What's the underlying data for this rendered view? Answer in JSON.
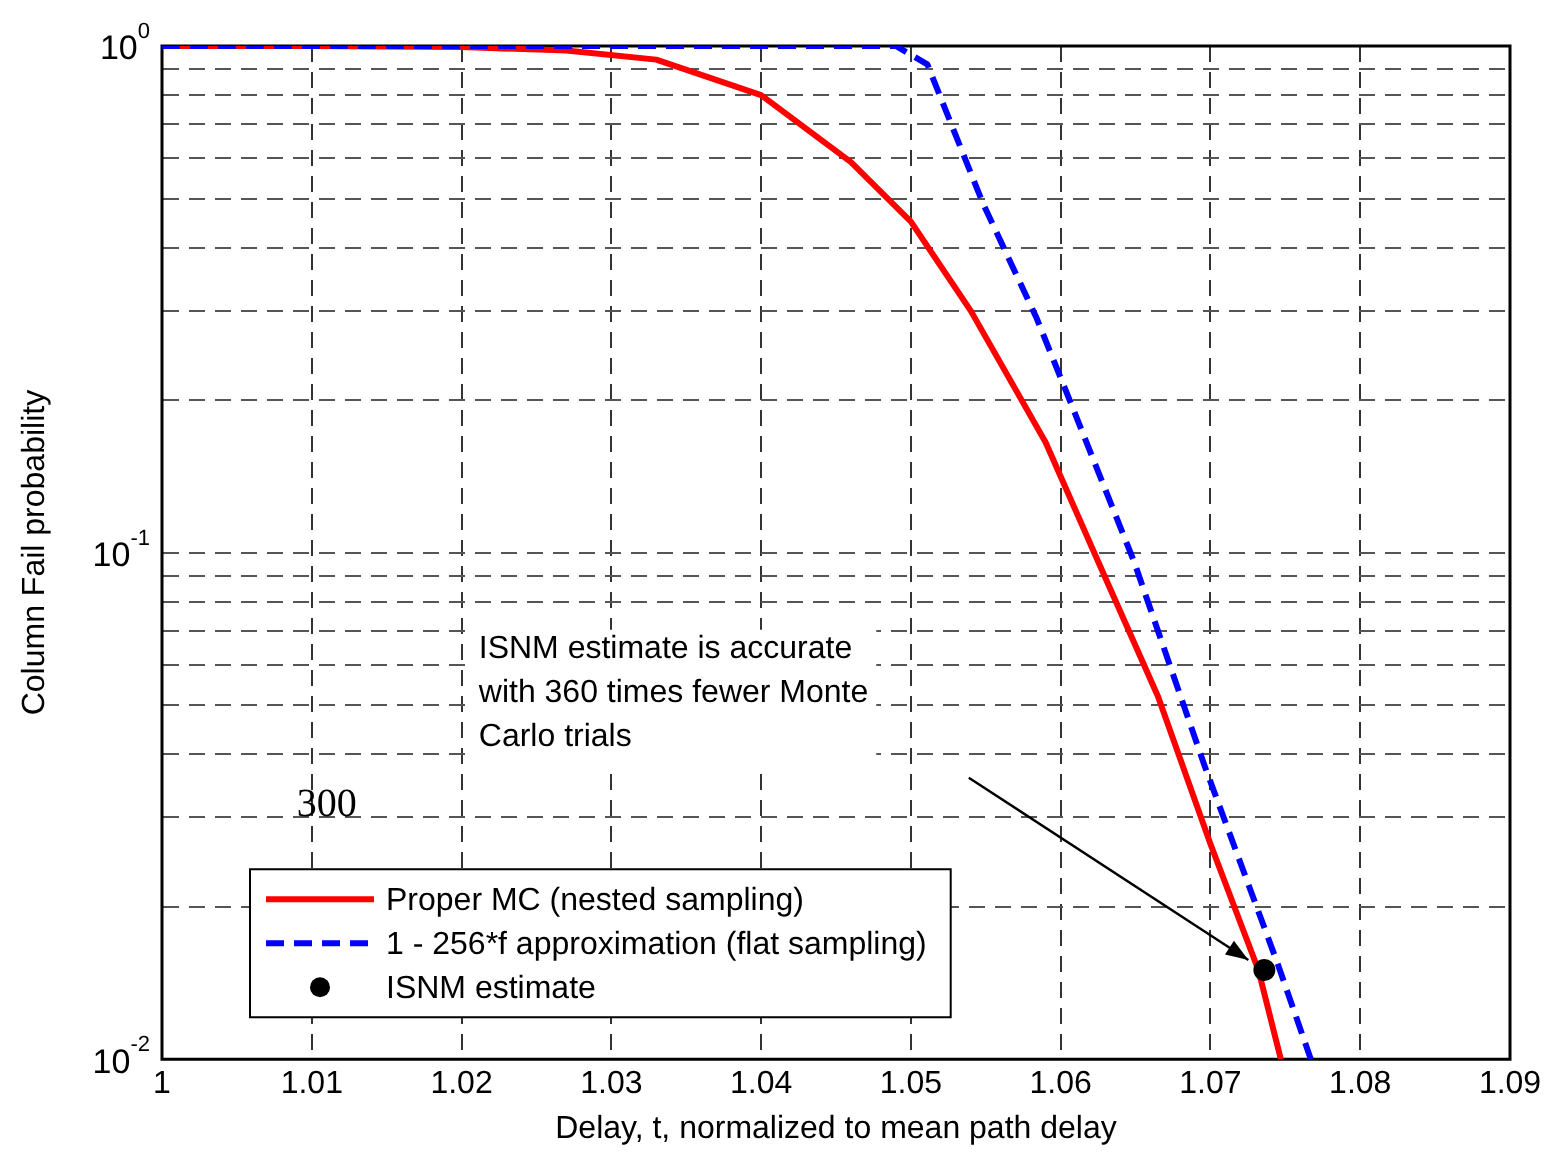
{
  "chart_data": {
    "type": "line",
    "xlabel": "Delay, t, normalized to mean path delay",
    "ylabel": "Column Fail probability",
    "log": "y",
    "grid": true,
    "legend": "bottom left",
    "xlim": [
      1,
      1.09
    ],
    "xticks": [
      1,
      1.01,
      1.02,
      1.03,
      1.04,
      1.05,
      1.06,
      1.07,
      1.08,
      1.09
    ],
    "ylim": [
      0.01,
      1
    ],
    "yticks": [
      {
        "value": 0.01,
        "label": "10$^{-2}$"
      },
      {
        "value": 0.02,
        "label": null
      },
      {
        "value": 0.03,
        "label": null
      },
      {
        "value": 0.04,
        "label": null
      },
      {
        "value": 0.05,
        "label": null
      },
      {
        "value": 0.06,
        "label": null
      },
      {
        "value": 0.07,
        "label": null
      },
      {
        "value": 0.08,
        "label": null
      },
      {
        "value": 0.09,
        "label": null
      },
      {
        "value": 0.1,
        "label": "10$^{-1}$"
      },
      {
        "value": 0.2,
        "label": null
      },
      {
        "value": 0.3,
        "label": null
      },
      {
        "value": 0.4,
        "label": null
      },
      {
        "value": 0.5,
        "label": null
      },
      {
        "value": 0.6,
        "label": null
      },
      {
        "value": 0.7,
        "label": null
      },
      {
        "value": 0.8,
        "label": null
      },
      {
        "value": 0.9,
        "label": null
      },
      {
        "value": 1,
        "label": "10$^{0}$"
      }
    ],
    "series": [
      {
        "name": "Proper MC (nested sampling)",
        "color": "#ff0000",
        "line_style": "solid",
        "marker": "none",
        "x": [
          1,
          1.01,
          1.02,
          1.027,
          1.033,
          1.04,
          1.046,
          1.05,
          1.054,
          1.059,
          1.0625,
          1.0665,
          1.07,
          1.0732,
          1.0747
        ],
        "values": [
          1,
          1,
          0.995,
          0.98,
          0.94,
          0.8,
          0.59,
          0.45,
          0.3,
          0.165,
          0.096,
          0.052,
          0.0266,
          0.015,
          0.01
        ]
      },
      {
        "name": "1 - 256*f approximation (flat sampling)",
        "color": "#0000ff",
        "line_style": "dashed",
        "marker": "none",
        "x": [
          1,
          1.049,
          1.0511,
          1.0548,
          1.0584,
          1.0606,
          1.0649,
          1.0696,
          1.0745,
          1.0767
        ],
        "values": [
          1,
          1,
          0.92,
          0.49,
          0.29,
          0.2,
          0.096,
          0.038,
          0.0154,
          0.01
        ]
      },
      {
        "name": "ISNM estimate",
        "type": "scatter",
        "color": "#000000",
        "marker": "circle",
        "x": [
          1.0736
        ],
        "values": [
          0.015
        ]
      }
    ],
    "annotations": [
      "ISNM estimate is accurate with 360 times fewer Monte Carlo trials",
      "300"
    ]
  }
}
